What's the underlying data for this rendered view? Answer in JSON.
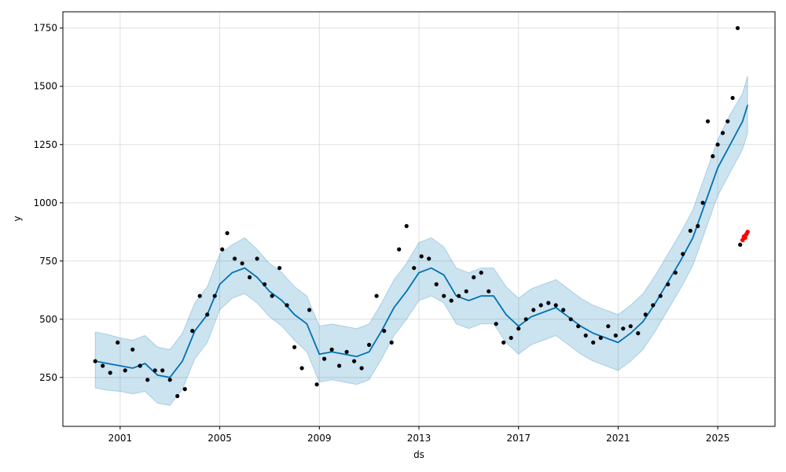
{
  "chart_data": {
    "type": "line",
    "title": "",
    "xlabel": "ds",
    "ylabel": "y",
    "xlim": [
      1998.7,
      2027.3
    ],
    "ylim": [
      40,
      1820
    ],
    "x_ticks": [
      2001,
      2005,
      2009,
      2013,
      2017,
      2021,
      2025
    ],
    "x_tick_labels": [
      "2001",
      "2005",
      "2009",
      "2013",
      "2017",
      "2021",
      "2025"
    ],
    "y_ticks": [
      250,
      500,
      750,
      1000,
      1250,
      1500,
      1750
    ],
    "y_tick_labels": [
      "250",
      "500",
      "750",
      "1000",
      "1250",
      "1500",
      "1750"
    ],
    "grid": true,
    "legend": "none",
    "colors": {
      "forecast": "#0072b2",
      "interval": "#0072b2",
      "observed": "#000000",
      "recent": "#ff0000"
    },
    "series": [
      {
        "kind": "forecast",
        "x": [
          2000.0,
          2000.5,
          2001.0,
          2001.5,
          2002.0,
          2002.5,
          2003.0,
          2003.5,
          2004.0,
          2004.5,
          2005.0,
          2005.5,
          2006.0,
          2006.5,
          2007.0,
          2007.5,
          2008.0,
          2008.5,
          2009.0,
          2009.5,
          2010.0,
          2010.5,
          2011.0,
          2011.5,
          2012.0,
          2012.5,
          2013.0,
          2013.5,
          2014.0,
          2014.5,
          2015.0,
          2015.5,
          2016.0,
          2016.5,
          2017.0,
          2017.5,
          2018.0,
          2018.5,
          2019.0,
          2019.5,
          2020.0,
          2020.5,
          2021.0,
          2021.5,
          2022.0,
          2022.5,
          2023.0,
          2023.5,
          2024.0,
          2024.5,
          2025.0,
          2025.5,
          2026.0,
          2026.2
        ],
        "y": [
          320,
          310,
          300,
          290,
          310,
          260,
          250,
          320,
          450,
          520,
          650,
          700,
          720,
          680,
          620,
          580,
          520,
          480,
          350,
          360,
          350,
          340,
          360,
          450,
          550,
          620,
          700,
          720,
          690,
          600,
          580,
          600,
          600,
          520,
          470,
          510,
          530,
          550,
          510,
          470,
          440,
          420,
          400,
          440,
          490,
          570,
          660,
          750,
          850,
          1000,
          1150,
          1250,
          1350,
          1420
        ],
        "lower": [
          205,
          195,
          190,
          180,
          190,
          140,
          130,
          200,
          330,
          400,
          540,
          590,
          610,
          570,
          510,
          470,
          410,
          360,
          230,
          240,
          230,
          220,
          240,
          330,
          430,
          500,
          580,
          600,
          570,
          480,
          460,
          480,
          480,
          400,
          350,
          390,
          410,
          430,
          390,
          350,
          320,
          300,
          280,
          320,
          370,
          450,
          540,
          630,
          730,
          880,
          1030,
          1130,
          1230,
          1300
        ],
        "upper": [
          445,
          435,
          420,
          410,
          430,
          380,
          370,
          440,
          570,
          640,
          780,
          820,
          850,
          800,
          740,
          700,
          640,
          600,
          470,
          480,
          470,
          460,
          480,
          570,
          670,
          740,
          830,
          850,
          810,
          720,
          700,
          720,
          720,
          640,
          590,
          630,
          650,
          670,
          630,
          590,
          560,
          540,
          520,
          560,
          610,
          690,
          780,
          870,
          970,
          1120,
          1270,
          1380,
          1470,
          1545
        ]
      },
      {
        "kind": "observed",
        "x": [
          2000.0,
          2000.3,
          2000.6,
          2000.9,
          2001.2,
          2001.5,
          2001.8,
          2002.1,
          2002.4,
          2002.7,
          2003.0,
          2003.3,
          2003.6,
          2003.9,
          2004.2,
          2004.5,
          2004.8,
          2005.1,
          2005.3,
          2005.6,
          2005.9,
          2006.2,
          2006.5,
          2006.8,
          2007.1,
          2007.4,
          2007.7,
          2008.0,
          2008.3,
          2008.6,
          2008.9,
          2009.2,
          2009.5,
          2009.8,
          2010.1,
          2010.4,
          2010.7,
          2011.0,
          2011.3,
          2011.6,
          2011.9,
          2012.2,
          2012.5,
          2012.8,
          2013.1,
          2013.4,
          2013.7,
          2014.0,
          2014.3,
          2014.6,
          2014.9,
          2015.2,
          2015.5,
          2015.8,
          2016.1,
          2016.4,
          2016.7,
          2017.0,
          2017.3,
          2017.6,
          2017.9,
          2018.2,
          2018.5,
          2018.8,
          2019.1,
          2019.4,
          2019.7,
          2020.0,
          2020.3,
          2020.6,
          2020.9,
          2021.2,
          2021.5,
          2021.8,
          2022.1,
          2022.4,
          2022.7,
          2023.0,
          2023.3,
          2023.6,
          2023.9,
          2024.2,
          2024.4,
          2024.6,
          2024.8,
          2025.0,
          2025.2,
          2025.4,
          2025.6,
          2025.8,
          2025.9
        ],
        "y": [
          320,
          300,
          270,
          400,
          280,
          370,
          300,
          240,
          280,
          280,
          240,
          170,
          200,
          450,
          600,
          520,
          600,
          800,
          870,
          760,
          740,
          680,
          760,
          650,
          600,
          720,
          560,
          380,
          290,
          540,
          220,
          330,
          370,
          300,
          360,
          320,
          290,
          390,
          600,
          450,
          400,
          800,
          900,
          720,
          770,
          760,
          650,
          600,
          580,
          600,
          620,
          680,
          700,
          620,
          480,
          400,
          420,
          460,
          500,
          540,
          560,
          570,
          560,
          540,
          500,
          470,
          430,
          400,
          420,
          470,
          430,
          460,
          470,
          440,
          520,
          560,
          600,
          650,
          700,
          780,
          880,
          900,
          1000,
          1350,
          1200,
          1250,
          1300,
          1350,
          1450,
          1750,
          820
        ]
      },
      {
        "kind": "recent",
        "x": [
          2026.0,
          2026.05,
          2026.1,
          2026.15,
          2026.2
        ],
        "y": [
          840,
          855,
          850,
          865,
          875
        ]
      }
    ]
  }
}
